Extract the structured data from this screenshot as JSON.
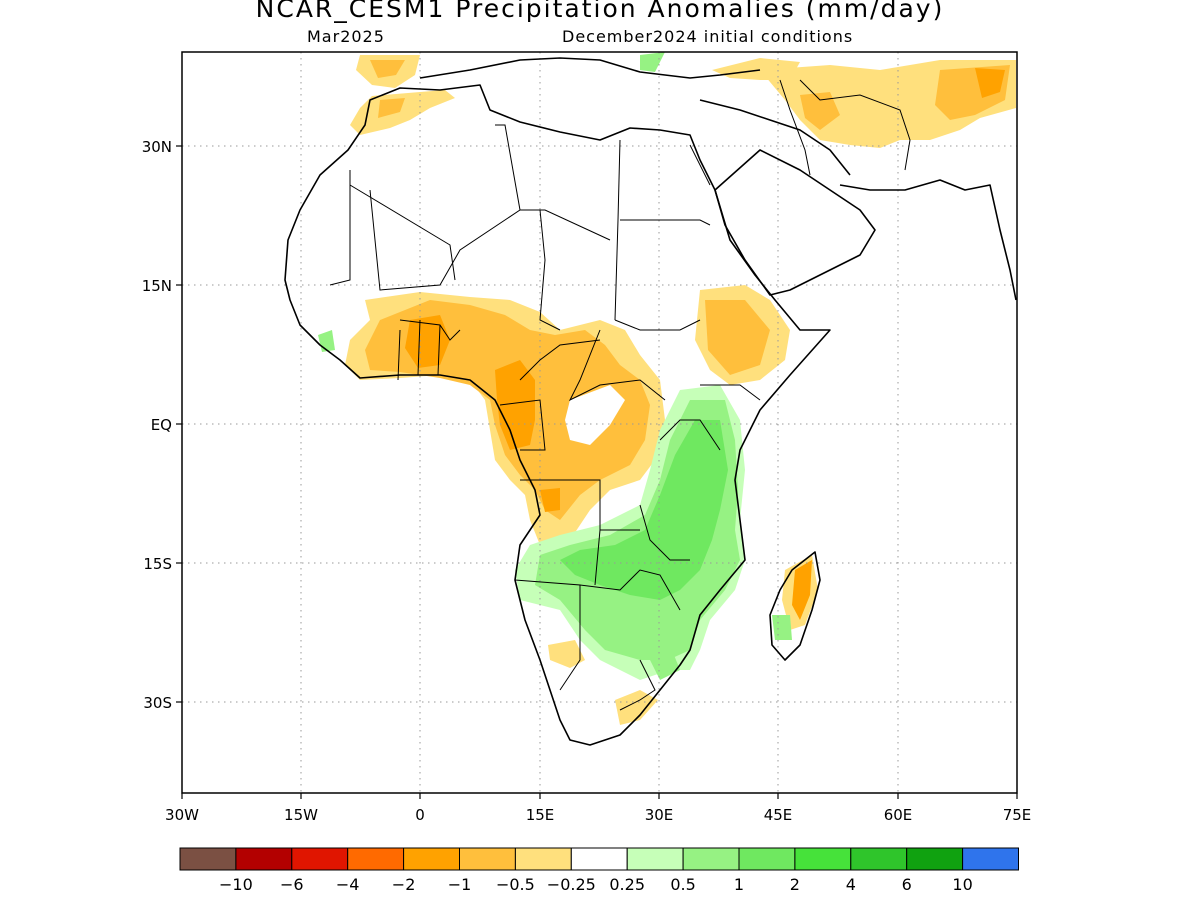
{
  "header": {
    "title": "NCAR_CESM1 Precipitation Anomalies (mm/day)",
    "left_subtitle": "Mar2025",
    "right_subtitle": "December2024 initial conditions"
  },
  "map": {
    "region": "Africa",
    "projection": "lat-lon",
    "lon_range": [
      -30,
      75
    ],
    "lat_range": [
      -40,
      38
    ],
    "lon_ticks": [
      "30W",
      "15W",
      "0",
      "15E",
      "30E",
      "45E",
      "60E",
      "75E"
    ],
    "lat_ticks": [
      "30N",
      "15N",
      "EQ",
      "15S",
      "30S"
    ],
    "grid": "dotted"
  },
  "legend": {
    "labels": [
      "-10",
      "-6",
      "-4",
      "-2",
      "-1",
      "-0.5",
      "-0.25",
      "0.25",
      "0.5",
      "1",
      "2",
      "4",
      "6",
      "10"
    ],
    "colors": [
      "#7b5043",
      "#b30000",
      "#e01500",
      "#ff6a00",
      "#ffa200",
      "#ffbf3c",
      "#ffe07d",
      "#ffffff",
      "#c6ffb8",
      "#96f283",
      "#6fe860",
      "#46e23a",
      "#2fc52b",
      "#10a210",
      "#2f74ec"
    ]
  }
}
